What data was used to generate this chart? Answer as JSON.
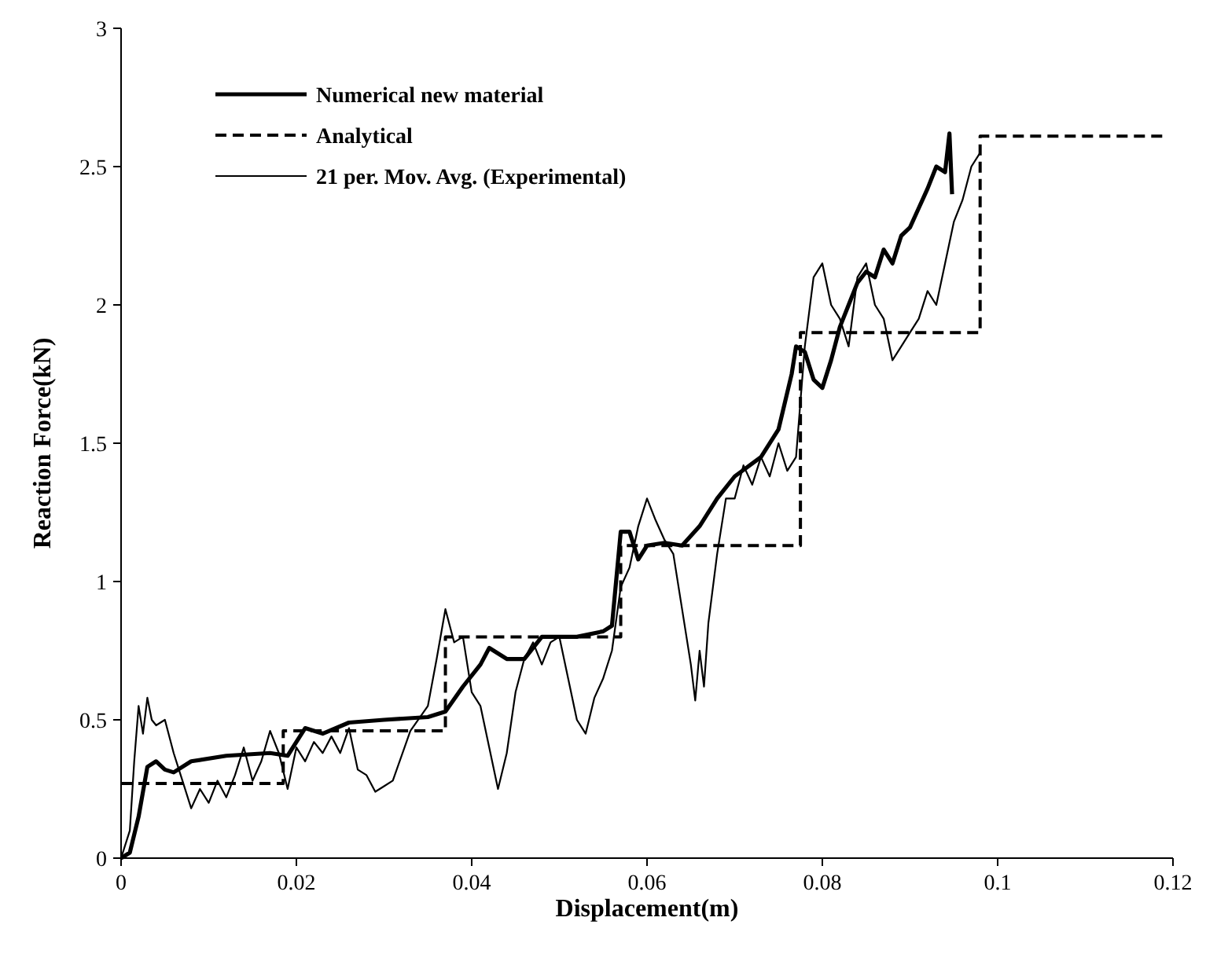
{
  "chart_data": {
    "type": "line",
    "xlabel": "Displacement(m)",
    "ylabel": "Reaction Force(kN)",
    "xlim": [
      0,
      0.12
    ],
    "xticks": [
      0,
      0.02,
      0.04,
      0.06,
      0.08,
      0.1,
      0.12
    ],
    "ylim": [
      0,
      3
    ],
    "yticks": [
      0,
      0.5,
      1,
      1.5,
      2,
      2.5,
      3
    ],
    "grid": false,
    "legend": "top left",
    "series": [
      {
        "name": "Numerical new material",
        "color": "#000000",
        "line_style": "solid",
        "x": [
          0,
          0.001,
          0.002,
          0.003,
          0.004,
          0.005,
          0.006,
          0.008,
          0.012,
          0.017,
          0.019,
          0.02,
          0.021,
          0.023,
          0.026,
          0.03,
          0.035,
          0.037,
          0.039,
          0.041,
          0.042,
          0.044,
          0.046,
          0.048,
          0.052,
          0.055,
          0.056,
          0.057,
          0.058,
          0.059,
          0.06,
          0.062,
          0.064,
          0.066,
          0.068,
          0.07,
          0.073,
          0.075,
          0.0765,
          0.077,
          0.078,
          0.079,
          0.08,
          0.081,
          0.082,
          0.083,
          0.084,
          0.085,
          0.086,
          0.087,
          0.088,
          0.089,
          0.09,
          0.091,
          0.092,
          0.093,
          0.094,
          0.0945,
          0.0948
        ],
        "values": [
          0,
          0.02,
          0.15,
          0.33,
          0.35,
          0.32,
          0.31,
          0.35,
          0.37,
          0.38,
          0.37,
          0.42,
          0.47,
          0.45,
          0.49,
          0.5,
          0.51,
          0.53,
          0.62,
          0.7,
          0.76,
          0.72,
          0.72,
          0.8,
          0.8,
          0.82,
          0.84,
          1.18,
          1.18,
          1.08,
          1.13,
          1.14,
          1.13,
          1.2,
          1.3,
          1.38,
          1.45,
          1.55,
          1.75,
          1.85,
          1.83,
          1.73,
          1.7,
          1.8,
          1.92,
          2,
          2.08,
          2.12,
          2.1,
          2.2,
          2.15,
          2.25,
          2.28,
          2.35,
          2.42,
          2.5,
          2.48,
          2.62,
          2.4
        ]
      },
      {
        "name": "Analytical",
        "type": "step",
        "color": "#000000",
        "line_style": "dashed",
        "x": [
          0,
          0.0185,
          0.037,
          0.057,
          0.0775,
          0.098,
          0.119
        ],
        "values": [
          0.27,
          0.46,
          0.8,
          1.13,
          1.9,
          2.61,
          2.61
        ]
      },
      {
        "name": "21 per. Mov. Avg. (Experimental)",
        "color": "#000000",
        "line_style": "solid",
        "x": [
          0,
          0.001,
          0.0015,
          0.002,
          0.0025,
          0.003,
          0.0035,
          0.004,
          0.005,
          0.006,
          0.007,
          0.008,
          0.009,
          0.01,
          0.011,
          0.012,
          0.013,
          0.014,
          0.015,
          0.016,
          0.017,
          0.018,
          0.019,
          0.02,
          0.021,
          0.022,
          0.023,
          0.024,
          0.025,
          0.026,
          0.027,
          0.028,
          0.029,
          0.03,
          0.031,
          0.033,
          0.035,
          0.036,
          0.037,
          0.038,
          0.039,
          0.04,
          0.041,
          0.042,
          0.043,
          0.044,
          0.045,
          0.046,
          0.047,
          0.048,
          0.049,
          0.05,
          0.051,
          0.052,
          0.053,
          0.054,
          0.055,
          0.056,
          0.057,
          0.058,
          0.059,
          0.06,
          0.061,
          0.062,
          0.063,
          0.064,
          0.065,
          0.0655,
          0.066,
          0.0665,
          0.067,
          0.068,
          0.069,
          0.07,
          0.071,
          0.072,
          0.073,
          0.074,
          0.075,
          0.076,
          0.077,
          0.078,
          0.079,
          0.08,
          0.081,
          0.082,
          0.083,
          0.084,
          0.085,
          0.086,
          0.087,
          0.088,
          0.089,
          0.09,
          0.091,
          0.092,
          0.093,
          0.094,
          0.095,
          0.096,
          0.097,
          0.098
        ],
        "values": [
          0,
          0.1,
          0.35,
          0.55,
          0.45,
          0.58,
          0.5,
          0.48,
          0.5,
          0.38,
          0.28,
          0.18,
          0.25,
          0.2,
          0.28,
          0.22,
          0.3,
          0.4,
          0.28,
          0.35,
          0.46,
          0.38,
          0.25,
          0.4,
          0.35,
          0.42,
          0.38,
          0.44,
          0.38,
          0.47,
          0.32,
          0.3,
          0.24,
          0.26,
          0.28,
          0.46,
          0.55,
          0.72,
          0.9,
          0.78,
          0.8,
          0.6,
          0.55,
          0.4,
          0.25,
          0.38,
          0.6,
          0.72,
          0.78,
          0.7,
          0.78,
          0.8,
          0.65,
          0.5,
          0.45,
          0.58,
          0.65,
          0.75,
          0.98,
          1.05,
          1.2,
          1.3,
          1.22,
          1.15,
          1.1,
          0.9,
          0.7,
          0.57,
          0.75,
          0.62,
          0.85,
          1.1,
          1.3,
          1.3,
          1.42,
          1.35,
          1.45,
          1.38,
          1.5,
          1.4,
          1.45,
          1.85,
          2.1,
          2.15,
          2,
          1.95,
          1.85,
          2.1,
          2.15,
          2,
          1.95,
          1.8,
          1.85,
          1.9,
          1.95,
          2.05,
          2,
          2.15,
          2.3,
          2.38,
          2.5,
          2.55
        ]
      }
    ]
  }
}
